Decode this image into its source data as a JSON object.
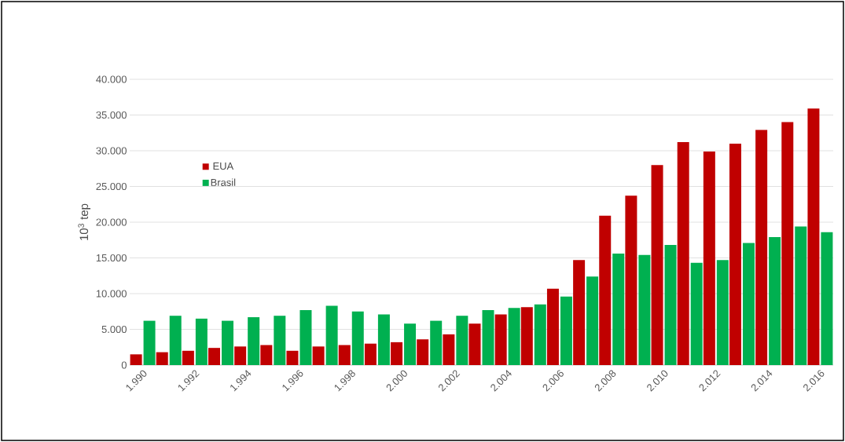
{
  "chart_data": {
    "type": "bar",
    "ylabel": "10$^{3}$ tep",
    "categories": [
      "1.990",
      null,
      "1.992",
      null,
      "1.994",
      null,
      "1.996",
      null,
      "1.998",
      null,
      "2.000",
      null,
      "2.002",
      null,
      "2.004",
      null,
      "2.006",
      null,
      "2.008",
      null,
      "2.010",
      null,
      "2.012",
      null,
      "2.014",
      null,
      "2.016"
    ],
    "series": [
      {
        "name": "EUA",
        "color": "#c00000",
        "values": [
          1500,
          1800,
          2000,
          2400,
          2600,
          2800,
          2000,
          2600,
          2800,
          3000,
          3200,
          3600,
          4300,
          5800,
          7100,
          8100,
          10700,
          14700,
          20900,
          23700,
          28000,
          31200,
          29900,
          31000,
          32900,
          34000,
          35900
        ]
      },
      {
        "name": "Brasil",
        "color": "#00b050",
        "values": [
          6200,
          6900,
          6500,
          6200,
          6700,
          6900,
          7700,
          8300,
          7500,
          7100,
          5800,
          6200,
          6900,
          7700,
          8000,
          8500,
          9600,
          12400,
          15600,
          15400,
          16800,
          14300,
          14700,
          17100,
          17900,
          19400,
          18600
        ]
      }
    ],
    "ylim": [
      0,
      40000
    ],
    "yticks": [
      {
        "value": 0,
        "label": "0"
      },
      {
        "value": 5000,
        "label": "5.000"
      },
      {
        "value": 10000,
        "label": "10.000"
      },
      {
        "value": 15000,
        "label": "15.000"
      },
      {
        "value": 20000,
        "label": "20.000"
      },
      {
        "value": 25000,
        "label": "25.000"
      },
      {
        "value": 30000,
        "label": "30.000"
      },
      {
        "value": 35000,
        "label": "35.000"
      },
      {
        "value": 40000,
        "label": "40.000"
      }
    ],
    "grid": "y",
    "legend": "top left"
  }
}
